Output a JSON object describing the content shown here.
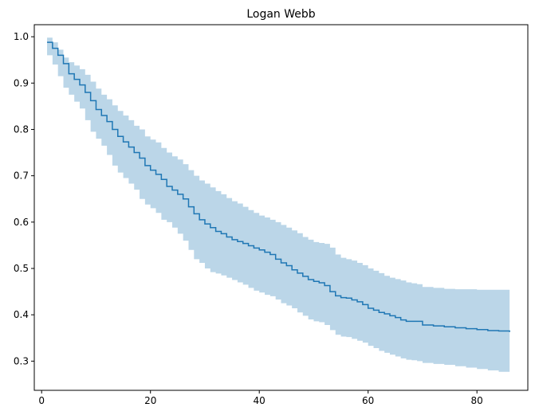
{
  "chart_data": {
    "type": "line",
    "title": "Logan Webb",
    "xlabel": "",
    "ylabel": "",
    "xlim": [
      -1.35,
      89.35
    ],
    "ylim": [
      0.237,
      1.026
    ],
    "xticks": [
      0,
      20,
      40,
      60,
      80
    ],
    "yticks": [
      0.3,
      0.4,
      0.5,
      0.6,
      0.7,
      0.8,
      0.9,
      1.0
    ],
    "xtick_labels": [
      "0",
      "20",
      "40",
      "60",
      "80"
    ],
    "ytick_labels": [
      "0.3",
      "0.4",
      "0.5",
      "0.6",
      "0.7",
      "0.8",
      "0.9",
      "1.0"
    ],
    "grid": false,
    "legend": false,
    "colors": {
      "line": "#1f77b4",
      "band": "#1f77b4",
      "band_opacity": 0.3
    },
    "series": [
      {
        "step": "post",
        "x": [
          1,
          2,
          3,
          4,
          5,
          6,
          7,
          8,
          9,
          10,
          11,
          12,
          13,
          14,
          15,
          16,
          17,
          18,
          19,
          20,
          21,
          22,
          23,
          24,
          25,
          26,
          27,
          28,
          29,
          30,
          31,
          32,
          33,
          34,
          35,
          36,
          37,
          38,
          39,
          40,
          41,
          42,
          43,
          44,
          45,
          46,
          47,
          48,
          49,
          50,
          51,
          52,
          53,
          54,
          55,
          56,
          57,
          58,
          59,
          60,
          61,
          62,
          63,
          64,
          65,
          66,
          67,
          68,
          69,
          70,
          72,
          74,
          76,
          78,
          80,
          82,
          84,
          86
        ],
        "y": [
          0.988,
          0.975,
          0.96,
          0.942,
          0.92,
          0.908,
          0.896,
          0.88,
          0.862,
          0.843,
          0.83,
          0.817,
          0.8,
          0.785,
          0.773,
          0.762,
          0.75,
          0.738,
          0.722,
          0.712,
          0.703,
          0.692,
          0.677,
          0.669,
          0.66,
          0.65,
          0.633,
          0.618,
          0.605,
          0.596,
          0.588,
          0.58,
          0.575,
          0.568,
          0.562,
          0.558,
          0.554,
          0.549,
          0.544,
          0.54,
          0.535,
          0.53,
          0.52,
          0.512,
          0.506,
          0.497,
          0.49,
          0.483,
          0.476,
          0.472,
          0.469,
          0.463,
          0.45,
          0.441,
          0.437,
          0.436,
          0.432,
          0.428,
          0.422,
          0.414,
          0.41,
          0.405,
          0.402,
          0.398,
          0.394,
          0.389,
          0.386,
          0.386,
          0.386,
          0.378,
          0.376,
          0.374,
          0.372,
          0.37,
          0.368,
          0.366,
          0.365,
          0.363
        ],
        "lower": [
          0.96,
          0.94,
          0.915,
          0.89,
          0.875,
          0.86,
          0.845,
          0.82,
          0.795,
          0.78,
          0.765,
          0.745,
          0.722,
          0.707,
          0.695,
          0.683,
          0.67,
          0.65,
          0.638,
          0.63,
          0.62,
          0.605,
          0.6,
          0.588,
          0.575,
          0.56,
          0.54,
          0.52,
          0.512,
          0.5,
          0.492,
          0.489,
          0.485,
          0.48,
          0.475,
          0.47,
          0.465,
          0.458,
          0.452,
          0.448,
          0.443,
          0.44,
          0.433,
          0.425,
          0.42,
          0.414,
          0.405,
          0.398,
          0.39,
          0.386,
          0.384,
          0.378,
          0.367,
          0.357,
          0.353,
          0.352,
          0.348,
          0.344,
          0.34,
          0.333,
          0.328,
          0.322,
          0.318,
          0.314,
          0.31,
          0.306,
          0.303,
          0.302,
          0.3,
          0.296,
          0.294,
          0.292,
          0.289,
          0.286,
          0.283,
          0.28,
          0.277,
          0.273
        ],
        "upper": [
          0.998,
          0.988,
          0.972,
          0.955,
          0.945,
          0.938,
          0.93,
          0.918,
          0.903,
          0.888,
          0.875,
          0.865,
          0.852,
          0.84,
          0.83,
          0.82,
          0.808,
          0.8,
          0.785,
          0.778,
          0.772,
          0.76,
          0.75,
          0.742,
          0.735,
          0.725,
          0.712,
          0.7,
          0.69,
          0.683,
          0.675,
          0.667,
          0.66,
          0.652,
          0.645,
          0.64,
          0.633,
          0.626,
          0.62,
          0.614,
          0.61,
          0.605,
          0.6,
          0.594,
          0.588,
          0.582,
          0.576,
          0.568,
          0.562,
          0.557,
          0.555,
          0.553,
          0.545,
          0.53,
          0.523,
          0.52,
          0.517,
          0.512,
          0.507,
          0.5,
          0.495,
          0.49,
          0.484,
          0.48,
          0.477,
          0.474,
          0.47,
          0.468,
          0.466,
          0.46,
          0.458,
          0.456,
          0.455,
          0.455,
          0.454,
          0.454,
          0.454,
          0.453
        ]
      }
    ]
  }
}
